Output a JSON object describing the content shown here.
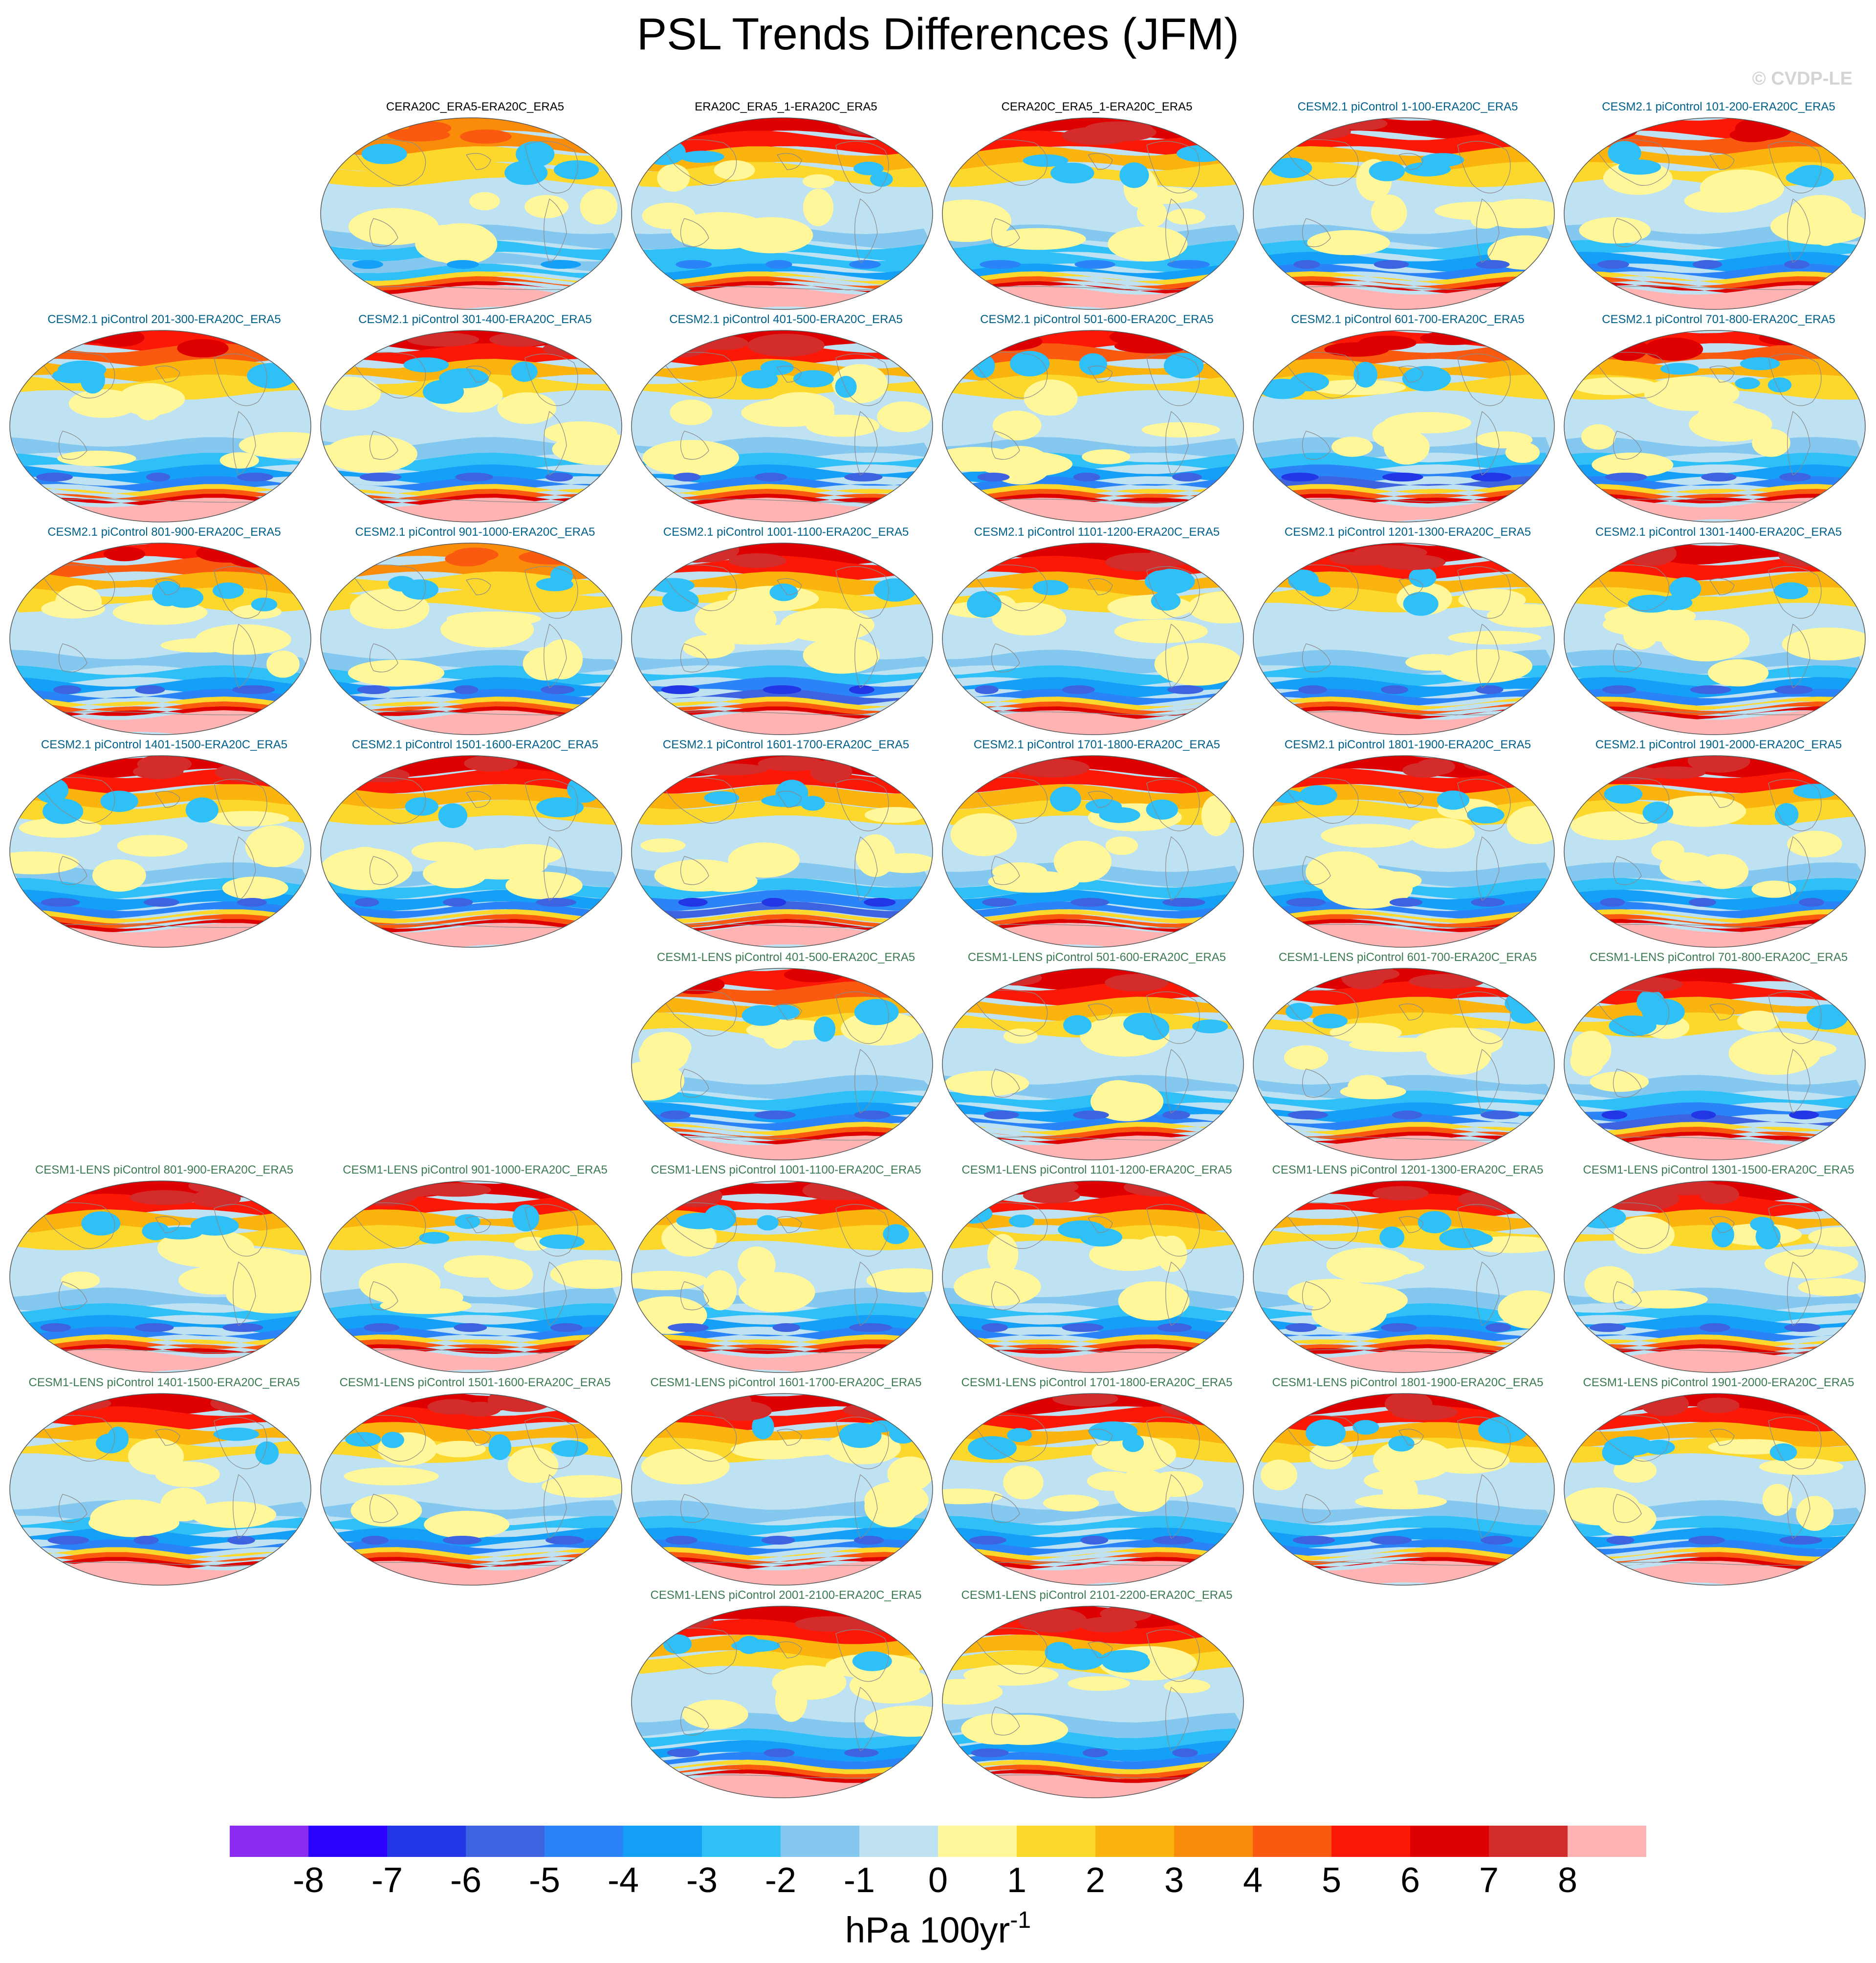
{
  "title": "PSL Trends Differences (JFM)",
  "watermark": "© CVDP-LE",
  "colors": {
    "obs_title": "#000000",
    "cesm2_title": "#00608a",
    "lens_title": "#3c7a52",
    "map_border": "#555555",
    "coastline": "#8a8a8a"
  },
  "chart_data": {
    "type": "heatmap",
    "projection": "global ellipse (Robinson-like)",
    "units": "hPa 100yr",
    "units_exponent": "-1",
    "panels": [
      {
        "title": "CERA20C_ERA5-ERA20C_ERA5",
        "group": "obs",
        "row": 0,
        "col": 1,
        "nh_max": 4,
        "sh_ring": -3,
        "sa_max": 8,
        "note": "Antarctica strongly positive"
      },
      {
        "title": "ERA20C_ERA5_1-ERA20C_ERA5",
        "group": "obs",
        "row": 0,
        "col": 2,
        "nh_max": 7,
        "sh_ring": -4,
        "sa_max": 8
      },
      {
        "title": "CERA20C_ERA5_1-ERA20C_ERA5",
        "group": "obs",
        "row": 0,
        "col": 3,
        "nh_max": 7,
        "sh_ring": -4,
        "sa_max": 8
      },
      {
        "title": "CESM2.1 piControl 1-100-ERA20C_ERA5",
        "group": "cesm2",
        "row": 0,
        "col": 4,
        "nh_max": 7,
        "sh_ring": -5,
        "sa_max": 8
      },
      {
        "title": "CESM2.1 piControl 101-200-ERA20C_ERA5",
        "group": "cesm2",
        "row": 0,
        "col": 5,
        "nh_max": 6,
        "sh_ring": -5,
        "sa_max": 8
      },
      {
        "title": "CESM2.1 piControl 201-300-ERA20C_ERA5",
        "group": "cesm2",
        "row": 1,
        "col": 0,
        "nh_max": 6,
        "sh_ring": -5,
        "sa_max": 8
      },
      {
        "title": "CESM2.1 piControl 301-400-ERA20C_ERA5",
        "group": "cesm2",
        "row": 1,
        "col": 1,
        "nh_max": 7,
        "sh_ring": -5,
        "sa_max": 8
      },
      {
        "title": "CESM2.1 piControl 401-500-ERA20C_ERA5",
        "group": "cesm2",
        "row": 1,
        "col": 2,
        "nh_max": 7,
        "sh_ring": -5,
        "sa_max": 8
      },
      {
        "title": "CESM2.1 piControl 501-600-ERA20C_ERA5",
        "group": "cesm2",
        "row": 1,
        "col": 3,
        "nh_max": 6,
        "sh_ring": -5,
        "sa_max": 8
      },
      {
        "title": "CESM2.1 piControl 601-700-ERA20C_ERA5",
        "group": "cesm2",
        "row": 1,
        "col": 4,
        "nh_max": 6,
        "sh_ring": -6,
        "sa_max": 8
      },
      {
        "title": "CESM2.1 piControl 701-800-ERA20C_ERA5",
        "group": "cesm2",
        "row": 1,
        "col": 5,
        "nh_max": 6,
        "sh_ring": -5,
        "sa_max": 8
      },
      {
        "title": "CESM2.1 piControl 801-900-ERA20C_ERA5",
        "group": "cesm2",
        "row": 2,
        "col": 0,
        "nh_max": 6,
        "sh_ring": -5,
        "sa_max": 8
      },
      {
        "title": "CESM2.1 piControl 901-1000-ERA20C_ERA5",
        "group": "cesm2",
        "row": 2,
        "col": 1,
        "nh_max": 4,
        "sh_ring": -5,
        "sa_max": 8
      },
      {
        "title": "CESM2.1 piControl 1001-1100-ERA20C_ERA5",
        "group": "cesm2",
        "row": 2,
        "col": 2,
        "nh_max": 7,
        "sh_ring": -6,
        "sa_max": 8
      },
      {
        "title": "CESM2.1 piControl 1101-1200-ERA20C_ERA5",
        "group": "cesm2",
        "row": 2,
        "col": 3,
        "nh_max": 7,
        "sh_ring": -5,
        "sa_max": 8
      },
      {
        "title": "CESM2.1 piControl 1201-1300-ERA20C_ERA5",
        "group": "cesm2",
        "row": 2,
        "col": 4,
        "nh_max": 7,
        "sh_ring": -5,
        "sa_max": 8
      },
      {
        "title": "CESM2.1 piControl 1301-1400-ERA20C_ERA5",
        "group": "cesm2",
        "row": 2,
        "col": 5,
        "nh_max": 7,
        "sh_ring": -5,
        "sa_max": 8
      },
      {
        "title": "CESM2.1 piControl 1401-1500-ERA20C_ERA5",
        "group": "cesm2",
        "row": 3,
        "col": 0,
        "nh_max": 7,
        "sh_ring": -5,
        "sa_max": 8
      },
      {
        "title": "CESM2.1 piControl 1501-1600-ERA20C_ERA5",
        "group": "cesm2",
        "row": 3,
        "col": 1,
        "nh_max": 7,
        "sh_ring": -5,
        "sa_max": 8
      },
      {
        "title": "CESM2.1 piControl 1601-1700-ERA20C_ERA5",
        "group": "cesm2",
        "row": 3,
        "col": 2,
        "nh_max": 7,
        "sh_ring": -6,
        "sa_max": 8
      },
      {
        "title": "CESM2.1 piControl 1701-1800-ERA20C_ERA5",
        "group": "cesm2",
        "row": 3,
        "col": 3,
        "nh_max": 7,
        "sh_ring": -5,
        "sa_max": 8
      },
      {
        "title": "CESM2.1 piControl 1801-1900-ERA20C_ERA5",
        "group": "cesm2",
        "row": 3,
        "col": 4,
        "nh_max": 7,
        "sh_ring": -5,
        "sa_max": 8
      },
      {
        "title": "CESM2.1 piControl 1901-2000-ERA20C_ERA5",
        "group": "cesm2",
        "row": 3,
        "col": 5,
        "nh_max": 7,
        "sh_ring": -5,
        "sa_max": 8
      },
      {
        "title": "CESM1-LENS piControl 401-500-ERA20C_ERA5",
        "group": "lens",
        "row": 4,
        "col": 2,
        "nh_max": 6,
        "sh_ring": -5,
        "sa_max": 8
      },
      {
        "title": "CESM1-LENS piControl 501-600-ERA20C_ERA5",
        "group": "lens",
        "row": 4,
        "col": 3,
        "nh_max": 7,
        "sh_ring": -5,
        "sa_max": 8
      },
      {
        "title": "CESM1-LENS piControl 601-700-ERA20C_ERA5",
        "group": "lens",
        "row": 4,
        "col": 4,
        "nh_max": 7,
        "sh_ring": -5,
        "sa_max": 8
      },
      {
        "title": "CESM1-LENS piControl 701-800-ERA20C_ERA5",
        "group": "lens",
        "row": 4,
        "col": 5,
        "nh_max": 7,
        "sh_ring": -6,
        "sa_max": 8
      },
      {
        "title": "CESM1-LENS piControl 801-900-ERA20C_ERA5",
        "group": "lens",
        "row": 5,
        "col": 0,
        "nh_max": 7,
        "sh_ring": -5,
        "sa_max": 8
      },
      {
        "title": "CESM1-LENS piControl 901-1000-ERA20C_ERA5",
        "group": "lens",
        "row": 5,
        "col": 1,
        "nh_max": 7,
        "sh_ring": -5,
        "sa_max": 8
      },
      {
        "title": "CESM1-LENS piControl 1001-1100-ERA20C_ERA5",
        "group": "lens",
        "row": 5,
        "col": 2,
        "nh_max": 7,
        "sh_ring": -5,
        "sa_max": 8
      },
      {
        "title": "CESM1-LENS piControl 1101-1200-ERA20C_ERA5",
        "group": "lens",
        "row": 5,
        "col": 3,
        "nh_max": 7,
        "sh_ring": -5,
        "sa_max": 8
      },
      {
        "title": "CESM1-LENS piControl 1201-1300-ERA20C_ERA5",
        "group": "lens",
        "row": 5,
        "col": 4,
        "nh_max": 7,
        "sh_ring": -5,
        "sa_max": 8
      },
      {
        "title": "CESM1-LENS piControl 1301-1500-ERA20C_ERA5",
        "group": "lens",
        "row": 5,
        "col": 5,
        "nh_max": 7,
        "sh_ring": -5,
        "sa_max": 8
      },
      {
        "title": "CESM1-LENS piControl 1401-1500-ERA20C_ERA5",
        "group": "lens",
        "row": 6,
        "col": 0,
        "nh_max": 7,
        "sh_ring": -5,
        "sa_max": 8
      },
      {
        "title": "CESM1-LENS piControl 1501-1600-ERA20C_ERA5",
        "group": "lens",
        "row": 6,
        "col": 1,
        "nh_max": 7,
        "sh_ring": -5,
        "sa_max": 8
      },
      {
        "title": "CESM1-LENS piControl 1601-1700-ERA20C_ERA5",
        "group": "lens",
        "row": 6,
        "col": 2,
        "nh_max": 7,
        "sh_ring": -5,
        "sa_max": 8
      },
      {
        "title": "CESM1-LENS piControl 1701-1800-ERA20C_ERA5",
        "group": "lens",
        "row": 6,
        "col": 3,
        "nh_max": 7,
        "sh_ring": -5,
        "sa_max": 8
      },
      {
        "title": "CESM1-LENS piControl 1801-1900-ERA20C_ERA5",
        "group": "lens",
        "row": 6,
        "col": 4,
        "nh_max": 7,
        "sh_ring": -5,
        "sa_max": 8
      },
      {
        "title": "CESM1-LENS piControl 1901-2000-ERA20C_ERA5",
        "group": "lens",
        "row": 6,
        "col": 5,
        "nh_max": 7,
        "sh_ring": -5,
        "sa_max": 8
      },
      {
        "title": "CESM1-LENS piControl 2001-2100-ERA20C_ERA5",
        "group": "lens",
        "row": 7,
        "col": 2,
        "nh_max": 7,
        "sh_ring": -5,
        "sa_max": 8
      },
      {
        "title": "CESM1-LENS piControl 2101-2200-ERA20C_ERA5",
        "group": "lens",
        "row": 7,
        "col": 3,
        "nh_max": 7,
        "sh_ring": -5,
        "sa_max": 8
      }
    ],
    "colorbar": {
      "levels": [
        -8,
        -7,
        -6,
        -5,
        -4,
        -3,
        -2,
        -1,
        0,
        1,
        2,
        3,
        4,
        5,
        6,
        7,
        8
      ],
      "tick_labels": [
        "-8",
        "-7",
        "-6",
        "-5",
        "-4",
        "-3",
        "-2",
        "-1",
        "0",
        "1",
        "2",
        "3",
        "4",
        "5",
        "6",
        "7",
        "8"
      ],
      "colors": [
        "#8c2cf2",
        "#2a00ff",
        "#2236e6",
        "#3e63e0",
        "#2a84f7",
        "#14a0f7",
        "#2fc0f8",
        "#84c8ef",
        "#bfe2f2",
        "#fff799",
        "#fcd72c",
        "#fab40d",
        "#fa8c09",
        "#fa5a10",
        "#fc1806",
        "#de0000",
        "#d42b2b",
        "#ffb3b3"
      ]
    }
  }
}
